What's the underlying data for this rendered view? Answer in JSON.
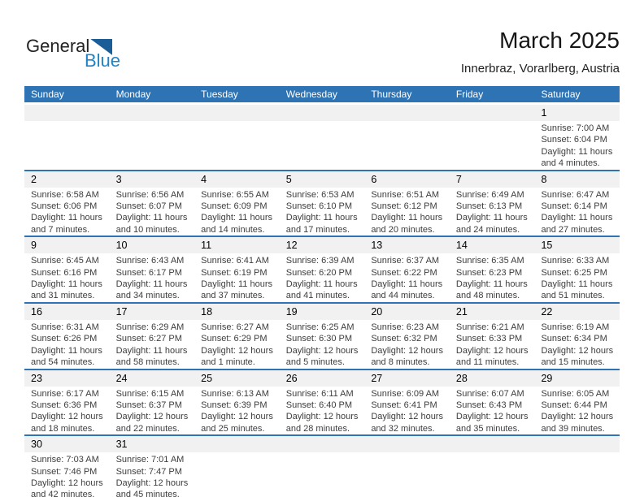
{
  "logo": {
    "general": "General",
    "blue": "Blue"
  },
  "header": {
    "title": "March 2025",
    "subtitle": "Innerbraz, Vorarlberg, Austria"
  },
  "colors": {
    "header_bar_blue": "#2e74b5",
    "week_separator_blue": "#2e74b5",
    "number_strip_gray": "#f1f1f1",
    "logo_text_blue": "#1f83c9",
    "logo_triangle_blue": "#1b5e97"
  },
  "weekdays": [
    "Sunday",
    "Monday",
    "Tuesday",
    "Wednesday",
    "Thursday",
    "Friday",
    "Saturday"
  ],
  "calendar": {
    "weeks": [
      [
        null,
        null,
        null,
        null,
        null,
        null,
        {
          "day": "1",
          "sunrise": "Sunrise: 7:00 AM",
          "sunset": "Sunset: 6:04 PM",
          "dl1": "Daylight: 11 hours",
          "dl2": "and 4 minutes."
        }
      ],
      [
        {
          "day": "2",
          "sunrise": "Sunrise: 6:58 AM",
          "sunset": "Sunset: 6:06 PM",
          "dl1": "Daylight: 11 hours",
          "dl2": "and 7 minutes."
        },
        {
          "day": "3",
          "sunrise": "Sunrise: 6:56 AM",
          "sunset": "Sunset: 6:07 PM",
          "dl1": "Daylight: 11 hours",
          "dl2": "and 10 minutes."
        },
        {
          "day": "4",
          "sunrise": "Sunrise: 6:55 AM",
          "sunset": "Sunset: 6:09 PM",
          "dl1": "Daylight: 11 hours",
          "dl2": "and 14 minutes."
        },
        {
          "day": "5",
          "sunrise": "Sunrise: 6:53 AM",
          "sunset": "Sunset: 6:10 PM",
          "dl1": "Daylight: 11 hours",
          "dl2": "and 17 minutes."
        },
        {
          "day": "6",
          "sunrise": "Sunrise: 6:51 AM",
          "sunset": "Sunset: 6:12 PM",
          "dl1": "Daylight: 11 hours",
          "dl2": "and 20 minutes."
        },
        {
          "day": "7",
          "sunrise": "Sunrise: 6:49 AM",
          "sunset": "Sunset: 6:13 PM",
          "dl1": "Daylight: 11 hours",
          "dl2": "and 24 minutes."
        },
        {
          "day": "8",
          "sunrise": "Sunrise: 6:47 AM",
          "sunset": "Sunset: 6:14 PM",
          "dl1": "Daylight: 11 hours",
          "dl2": "and 27 minutes."
        }
      ],
      [
        {
          "day": "9",
          "sunrise": "Sunrise: 6:45 AM",
          "sunset": "Sunset: 6:16 PM",
          "dl1": "Daylight: 11 hours",
          "dl2": "and 31 minutes."
        },
        {
          "day": "10",
          "sunrise": "Sunrise: 6:43 AM",
          "sunset": "Sunset: 6:17 PM",
          "dl1": "Daylight: 11 hours",
          "dl2": "and 34 minutes."
        },
        {
          "day": "11",
          "sunrise": "Sunrise: 6:41 AM",
          "sunset": "Sunset: 6:19 PM",
          "dl1": "Daylight: 11 hours",
          "dl2": "and 37 minutes."
        },
        {
          "day": "12",
          "sunrise": "Sunrise: 6:39 AM",
          "sunset": "Sunset: 6:20 PM",
          "dl1": "Daylight: 11 hours",
          "dl2": "and 41 minutes."
        },
        {
          "day": "13",
          "sunrise": "Sunrise: 6:37 AM",
          "sunset": "Sunset: 6:22 PM",
          "dl1": "Daylight: 11 hours",
          "dl2": "and 44 minutes."
        },
        {
          "day": "14",
          "sunrise": "Sunrise: 6:35 AM",
          "sunset": "Sunset: 6:23 PM",
          "dl1": "Daylight: 11 hours",
          "dl2": "and 48 minutes."
        },
        {
          "day": "15",
          "sunrise": "Sunrise: 6:33 AM",
          "sunset": "Sunset: 6:25 PM",
          "dl1": "Daylight: 11 hours",
          "dl2": "and 51 minutes."
        }
      ],
      [
        {
          "day": "16",
          "sunrise": "Sunrise: 6:31 AM",
          "sunset": "Sunset: 6:26 PM",
          "dl1": "Daylight: 11 hours",
          "dl2": "and 54 minutes."
        },
        {
          "day": "17",
          "sunrise": "Sunrise: 6:29 AM",
          "sunset": "Sunset: 6:27 PM",
          "dl1": "Daylight: 11 hours",
          "dl2": "and 58 minutes."
        },
        {
          "day": "18",
          "sunrise": "Sunrise: 6:27 AM",
          "sunset": "Sunset: 6:29 PM",
          "dl1": "Daylight: 12 hours",
          "dl2": "and 1 minute."
        },
        {
          "day": "19",
          "sunrise": "Sunrise: 6:25 AM",
          "sunset": "Sunset: 6:30 PM",
          "dl1": "Daylight: 12 hours",
          "dl2": "and 5 minutes."
        },
        {
          "day": "20",
          "sunrise": "Sunrise: 6:23 AM",
          "sunset": "Sunset: 6:32 PM",
          "dl1": "Daylight: 12 hours",
          "dl2": "and 8 minutes."
        },
        {
          "day": "21",
          "sunrise": "Sunrise: 6:21 AM",
          "sunset": "Sunset: 6:33 PM",
          "dl1": "Daylight: 12 hours",
          "dl2": "and 11 minutes."
        },
        {
          "day": "22",
          "sunrise": "Sunrise: 6:19 AM",
          "sunset": "Sunset: 6:34 PM",
          "dl1": "Daylight: 12 hours",
          "dl2": "and 15 minutes."
        }
      ],
      [
        {
          "day": "23",
          "sunrise": "Sunrise: 6:17 AM",
          "sunset": "Sunset: 6:36 PM",
          "dl1": "Daylight: 12 hours",
          "dl2": "and 18 minutes."
        },
        {
          "day": "24",
          "sunrise": "Sunrise: 6:15 AM",
          "sunset": "Sunset: 6:37 PM",
          "dl1": "Daylight: 12 hours",
          "dl2": "and 22 minutes."
        },
        {
          "day": "25",
          "sunrise": "Sunrise: 6:13 AM",
          "sunset": "Sunset: 6:39 PM",
          "dl1": "Daylight: 12 hours",
          "dl2": "and 25 minutes."
        },
        {
          "day": "26",
          "sunrise": "Sunrise: 6:11 AM",
          "sunset": "Sunset: 6:40 PM",
          "dl1": "Daylight: 12 hours",
          "dl2": "and 28 minutes."
        },
        {
          "day": "27",
          "sunrise": "Sunrise: 6:09 AM",
          "sunset": "Sunset: 6:41 PM",
          "dl1": "Daylight: 12 hours",
          "dl2": "and 32 minutes."
        },
        {
          "day": "28",
          "sunrise": "Sunrise: 6:07 AM",
          "sunset": "Sunset: 6:43 PM",
          "dl1": "Daylight: 12 hours",
          "dl2": "and 35 minutes."
        },
        {
          "day": "29",
          "sunrise": "Sunrise: 6:05 AM",
          "sunset": "Sunset: 6:44 PM",
          "dl1": "Daylight: 12 hours",
          "dl2": "and 39 minutes."
        }
      ],
      [
        {
          "day": "30",
          "sunrise": "Sunrise: 7:03 AM",
          "sunset": "Sunset: 7:46 PM",
          "dl1": "Daylight: 12 hours",
          "dl2": "and 42 minutes."
        },
        {
          "day": "31",
          "sunrise": "Sunrise: 7:01 AM",
          "sunset": "Sunset: 7:47 PM",
          "dl1": "Daylight: 12 hours",
          "dl2": "and 45 minutes."
        },
        null,
        null,
        null,
        null,
        null
      ]
    ]
  }
}
